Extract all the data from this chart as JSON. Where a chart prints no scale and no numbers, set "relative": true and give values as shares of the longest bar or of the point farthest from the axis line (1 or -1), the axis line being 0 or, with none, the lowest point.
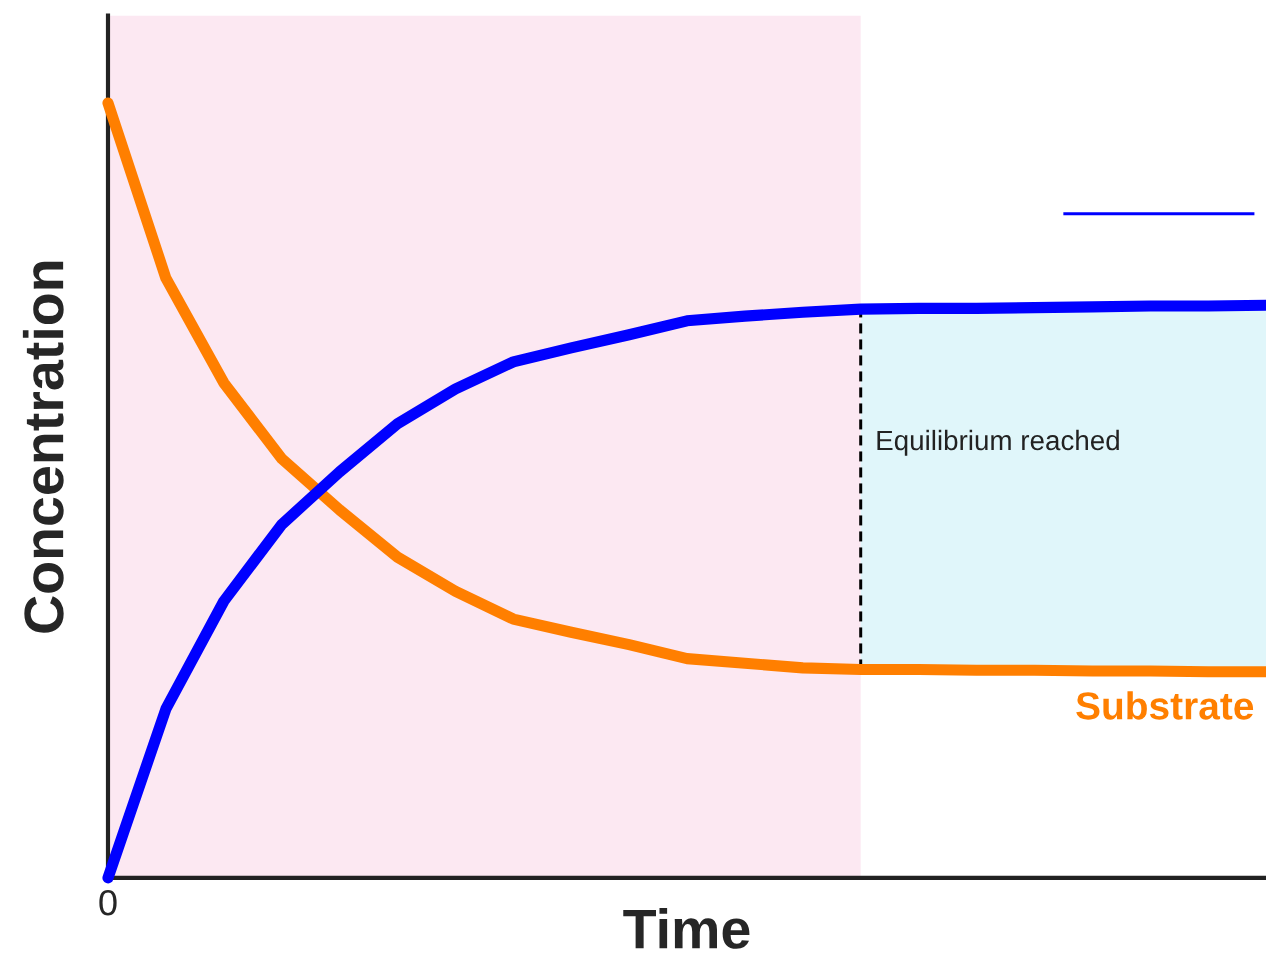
{
  "chart_data": {
    "type": "line",
    "relative": true,
    "xlabel": "Time",
    "ylabel": "Concentration",
    "line_style": "solid",
    "marker": "none",
    "annotations": [
      "0",
      "Equilibrium reached"
    ],
    "categories": [
      null,
      null,
      null,
      null,
      null,
      null,
      null,
      null,
      null,
      null,
      null,
      null,
      null,
      null,
      null,
      null,
      null,
      null,
      null,
      null,
      null
    ],
    "series": [
      {
        "color": "#ff7f00",
        "name": "Substrate",
        "values": [
          1.0,
          0.774,
          0.639,
          0.541,
          0.475,
          0.414,
          0.37,
          0.334,
          0.317,
          0.301,
          0.283,
          0.277,
          0.271,
          0.269,
          0.269,
          0.268,
          0.268,
          0.267,
          0.267,
          0.266,
          0.266
        ]
      },
      {
        "color": "#0000ff",
        "values": [
          0,
          0.218,
          0.357,
          0.456,
          0.524,
          0.586,
          0.631,
          0.666,
          0.684,
          0.701,
          0.719,
          0.725,
          0.73,
          0.734,
          0.735,
          0.735,
          0.736,
          0.737,
          0.738,
          0.738,
          0.739
        ]
      }
    ]
  }
}
